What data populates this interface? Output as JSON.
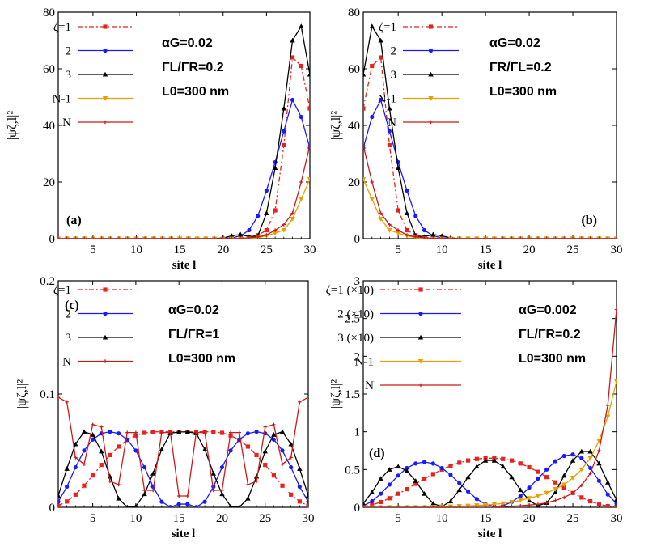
{
  "chart_data": [
    {
      "type": "line",
      "panel_label": "(a)",
      "xlabel": "site l",
      "ylabel": "|ψζ,l|²",
      "xlim": [
        1,
        30
      ],
      "ylim": [
        0,
        80
      ],
      "xticks": [
        5,
        10,
        15,
        20,
        25,
        30
      ],
      "yticks": [
        0,
        20,
        40,
        60,
        80
      ],
      "annotations": [
        "αG=0.02",
        "ΓL/ΓR=0.2",
        "L0=300 nm"
      ],
      "x": [
        1,
        2,
        3,
        4,
        5,
        6,
        7,
        8,
        9,
        10,
        11,
        12,
        13,
        14,
        15,
        16,
        17,
        18,
        19,
        20,
        21,
        22,
        23,
        24,
        25,
        26,
        27,
        28,
        29,
        30
      ],
      "series": [
        {
          "name": "ζ=1",
          "color": "#e8231f",
          "marker": "square",
          "dash": "dashdot",
          "values": [
            0,
            0,
            0,
            0,
            0,
            0,
            0,
            0,
            0,
            0,
            0,
            0,
            0,
            0,
            0,
            0,
            0,
            0,
            0,
            0,
            0.1,
            0.2,
            0.5,
            1.2,
            3,
            10,
            33,
            64,
            61,
            46
          ]
        },
        {
          "name": "2",
          "color": "#1a1aff",
          "marker": "circle",
          "dash": "solid",
          "values": [
            0,
            0,
            0,
            0,
            0,
            0,
            0,
            0,
            0,
            0,
            0,
            0,
            0,
            0,
            0,
            0,
            0,
            0,
            0,
            0.1,
            0.3,
            1,
            3,
            8,
            17,
            27,
            38,
            49,
            43,
            32
          ]
        },
        {
          "name": "3",
          "color": "#000000",
          "marker": "triangle",
          "dash": "solid",
          "values": [
            0,
            0,
            0,
            0,
            0,
            0,
            0,
            0,
            0,
            0,
            0,
            0,
            0,
            0,
            0,
            0,
            0,
            0,
            0,
            0.3,
            1,
            1.5,
            0.7,
            1,
            9,
            25,
            46,
            70,
            75,
            58
          ]
        },
        {
          "name": "N-1",
          "color": "#e8a000",
          "marker": "triangle-down",
          "dash": "solid",
          "values": [
            0,
            0,
            0,
            0,
            0,
            0,
            0,
            0,
            0,
            0,
            0,
            0,
            0,
            0,
            0,
            0,
            0,
            0,
            0,
            0,
            0,
            0,
            0,
            0.3,
            1,
            2,
            3,
            7,
            14,
            21
          ]
        },
        {
          "name": "N",
          "color": "#cc1a1a",
          "marker": "plus",
          "dash": "solid",
          "values": [
            0,
            0,
            0,
            0,
            0,
            0,
            0,
            0,
            0,
            0,
            0,
            0,
            0,
            0,
            0,
            0,
            0,
            0,
            0,
            0,
            0,
            0.1,
            0.3,
            0.6,
            1.3,
            3,
            5,
            9,
            20,
            33
          ]
        }
      ]
    },
    {
      "type": "line",
      "panel_label": "(b)",
      "xlabel": "site l",
      "ylabel": "|ψζ,l|²",
      "xlim": [
        1,
        30
      ],
      "ylim": [
        0,
        80
      ],
      "xticks": [
        5,
        10,
        15,
        20,
        25,
        30
      ],
      "yticks": [
        0,
        20,
        40,
        60,
        80
      ],
      "annotations": [
        "αG=0.02",
        "ΓR/ΓL=0.2",
        "L0=300 nm"
      ],
      "x": [
        1,
        2,
        3,
        4,
        5,
        6,
        7,
        8,
        9,
        10,
        11,
        12,
        13,
        14,
        15,
        16,
        17,
        18,
        19,
        20,
        21,
        22,
        23,
        24,
        25,
        26,
        27,
        28,
        29,
        30
      ],
      "series": [
        {
          "name": "ζ=1",
          "color": "#e8231f",
          "marker": "square",
          "dash": "dashdot",
          "values": [
            46,
            61,
            64,
            33,
            10,
            3,
            1.2,
            0.5,
            0.2,
            0.1,
            0,
            0,
            0,
            0,
            0,
            0,
            0,
            0,
            0,
            0,
            0,
            0,
            0,
            0,
            0,
            0,
            0,
            0,
            0,
            0
          ]
        },
        {
          "name": "2",
          "color": "#1a1aff",
          "marker": "circle",
          "dash": "solid",
          "values": [
            32,
            43,
            49,
            38,
            27,
            17,
            8,
            3,
            1,
            0.3,
            0.1,
            0,
            0,
            0,
            0,
            0,
            0,
            0,
            0,
            0,
            0,
            0,
            0,
            0,
            0,
            0,
            0,
            0,
            0,
            0
          ]
        },
        {
          "name": "3",
          "color": "#000000",
          "marker": "triangle",
          "dash": "solid",
          "values": [
            58,
            75,
            70,
            46,
            25,
            9,
            1,
            0.7,
            1.5,
            1,
            0.3,
            0,
            0,
            0,
            0,
            0,
            0,
            0,
            0,
            0,
            0,
            0,
            0,
            0,
            0,
            0,
            0,
            0,
            0,
            0
          ]
        },
        {
          "name": "N-1",
          "color": "#e8a000",
          "marker": "triangle-down",
          "dash": "solid",
          "values": [
            21,
            14,
            7,
            3,
            2,
            1,
            0.3,
            0,
            0,
            0,
            0,
            0,
            0,
            0,
            0,
            0,
            0,
            0,
            0,
            0,
            0,
            0,
            0,
            0,
            0,
            0,
            0,
            0,
            0,
            0
          ]
        },
        {
          "name": "N",
          "color": "#cc1a1a",
          "marker": "plus",
          "dash": "solid",
          "values": [
            33,
            20,
            9,
            5,
            3,
            1.3,
            0.6,
            0.3,
            0.1,
            0,
            0,
            0,
            0,
            0,
            0,
            0,
            0,
            0,
            0,
            0,
            0,
            0,
            0,
            0,
            0,
            0,
            0,
            0,
            0,
            0
          ]
        }
      ]
    },
    {
      "type": "line",
      "panel_label": "(c)",
      "xlabel": "site l",
      "ylabel": "|ψζ,l|²",
      "xlim": [
        1,
        30
      ],
      "ylim": [
        0,
        0.2
      ],
      "xticks": [
        5,
        10,
        15,
        20,
        25,
        30
      ],
      "yticks": [
        0,
        0.1,
        0.2
      ],
      "annotations": [
        "αG=0.02",
        "ΓL/ΓR=1",
        "L0=300 nm"
      ],
      "x": [
        1,
        2,
        3,
        4,
        5,
        6,
        7,
        8,
        9,
        10,
        11,
        12,
        13,
        14,
        15,
        16,
        17,
        18,
        19,
        20,
        21,
        22,
        23,
        24,
        25,
        26,
        27,
        28,
        29,
        30
      ],
      "series": [
        {
          "name": "ζ=1",
          "color": "#e8231f",
          "marker": "square",
          "dash": "dashdot",
          "values": [
            0.0013,
            0.0051,
            0.0112,
            0.0191,
            0.0281,
            0.0374,
            0.0461,
            0.0536,
            0.0594,
            0.0634,
            0.0657,
            0.0666,
            0.0667,
            0.0666,
            0.0666,
            0.0666,
            0.0666,
            0.0667,
            0.0666,
            0.0657,
            0.0634,
            0.0594,
            0.0536,
            0.0461,
            0.0374,
            0.0281,
            0.0191,
            0.0112,
            0.0051,
            0.0013
          ]
        },
        {
          "name": "2",
          "color": "#1a1aff",
          "marker": "circle",
          "dash": "solid",
          "values": [
            0.0049,
            0.0182,
            0.0353,
            0.0501,
            0.0598,
            0.0652,
            0.0667,
            0.0652,
            0.0598,
            0.0501,
            0.0353,
            0.0182,
            0.0049,
            0.0002,
            0.0028,
            0.0028,
            0.0002,
            0.0049,
            0.0182,
            0.0353,
            0.0501,
            0.0598,
            0.0652,
            0.0667,
            0.0652,
            0.0598,
            0.0501,
            0.0353,
            0.0182,
            0.0049
          ]
        },
        {
          "name": "3",
          "color": "#000000",
          "marker": "triangle",
          "dash": "solid",
          "values": [
            0.0103,
            0.0341,
            0.0558,
            0.0667,
            0.0641,
            0.0494,
            0.0272,
            0.0078,
            0.0001,
            0.0009,
            0.0117,
            0.0299,
            0.0511,
            0.0654,
            0.0665,
            0.0665,
            0.0654,
            0.0511,
            0.0299,
            0.0117,
            0.0009,
            0.0001,
            0.0078,
            0.0272,
            0.0494,
            0.0641,
            0.0667,
            0.0558,
            0.0341,
            0.0103
          ]
        },
        {
          "name": "N",
          "color": "#cc1a1a",
          "marker": "plus",
          "dash": "solid",
          "values": [
            0.097,
            0.093,
            0.044,
            0.038,
            0.073,
            0.071,
            0.023,
            0.02,
            0.066,
            0.066,
            0.015,
            0.015,
            0.066,
            0.066,
            0.01,
            0.01,
            0.066,
            0.066,
            0.015,
            0.015,
            0.066,
            0.066,
            0.02,
            0.023,
            0.071,
            0.073,
            0.038,
            0.044,
            0.093,
            0.097
          ]
        }
      ]
    },
    {
      "type": "line",
      "panel_label": "(d)",
      "xlabel": "site l",
      "ylabel": "|ψζ,l|²",
      "xlim": [
        1,
        30
      ],
      "ylim": [
        0,
        3
      ],
      "xticks": [
        5,
        10,
        15,
        20,
        25,
        30
      ],
      "yticks": [
        0,
        0.5,
        1,
        1.5,
        2,
        2.5,
        3
      ],
      "annotations": [
        "αG=0.002",
        "ΓL/ΓR=0.2",
        "L0=300 nm"
      ],
      "x": [
        1,
        2,
        3,
        4,
        5,
        6,
        7,
        8,
        9,
        10,
        11,
        12,
        13,
        14,
        15,
        16,
        17,
        18,
        19,
        20,
        21,
        22,
        23,
        24,
        25,
        26,
        27,
        28,
        29,
        30
      ],
      "series": [
        {
          "name": "ζ=1 (×10)",
          "color": "#e8231f",
          "marker": "square",
          "dash": "dashdot",
          "values": [
            0.01,
            0.03,
            0.07,
            0.12,
            0.18,
            0.24,
            0.31,
            0.38,
            0.44,
            0.5,
            0.55,
            0.59,
            0.62,
            0.64,
            0.65,
            0.65,
            0.64,
            0.62,
            0.58,
            0.53,
            0.47,
            0.4,
            0.33,
            0.26,
            0.19,
            0.13,
            0.08,
            0.04,
            0.015,
            0.005
          ]
        },
        {
          "name": "2 (×10)",
          "color": "#1a1aff",
          "marker": "circle",
          "dash": "solid",
          "values": [
            0.02,
            0.08,
            0.18,
            0.3,
            0.42,
            0.52,
            0.58,
            0.6,
            0.58,
            0.52,
            0.43,
            0.32,
            0.21,
            0.11,
            0.04,
            0.01,
            0.02,
            0.07,
            0.15,
            0.26,
            0.38,
            0.5,
            0.61,
            0.68,
            0.7,
            0.65,
            0.52,
            0.35,
            0.17,
            0.05
          ]
        },
        {
          "name": "3 (×10)",
          "color": "#000000",
          "marker": "triangle",
          "dash": "solid",
          "values": [
            0.05,
            0.2,
            0.38,
            0.5,
            0.54,
            0.48,
            0.35,
            0.18,
            0.05,
            0.01,
            0.08,
            0.23,
            0.4,
            0.54,
            0.62,
            0.62,
            0.54,
            0.4,
            0.23,
            0.09,
            0.02,
            0.06,
            0.2,
            0.42,
            0.62,
            0.74,
            0.74,
            0.58,
            0.33,
            0.1
          ]
        },
        {
          "name": "N-1",
          "color": "#e8a000",
          "marker": "triangle-down",
          "dash": "solid",
          "values": [
            0,
            0,
            0,
            0,
            0,
            0,
            0,
            0,
            0.005,
            0.01,
            0.01,
            0.015,
            0.02,
            0.025,
            0.03,
            0.04,
            0.05,
            0.07,
            0.09,
            0.12,
            0.15,
            0.19,
            0.24,
            0.3,
            0.39,
            0.5,
            0.65,
            0.88,
            1.2,
            1.67
          ]
        },
        {
          "name": "N",
          "color": "#cc1a1a",
          "marker": "plus",
          "dash": "solid",
          "values": [
            0,
            0,
            0,
            0,
            0,
            0,
            0,
            0,
            0,
            0,
            0,
            0,
            0,
            0,
            0,
            0,
            0.01,
            0.015,
            0.02,
            0.03,
            0.04,
            0.06,
            0.09,
            0.13,
            0.19,
            0.29,
            0.45,
            0.75,
            1.35,
            2.62
          ]
        }
      ]
    }
  ]
}
